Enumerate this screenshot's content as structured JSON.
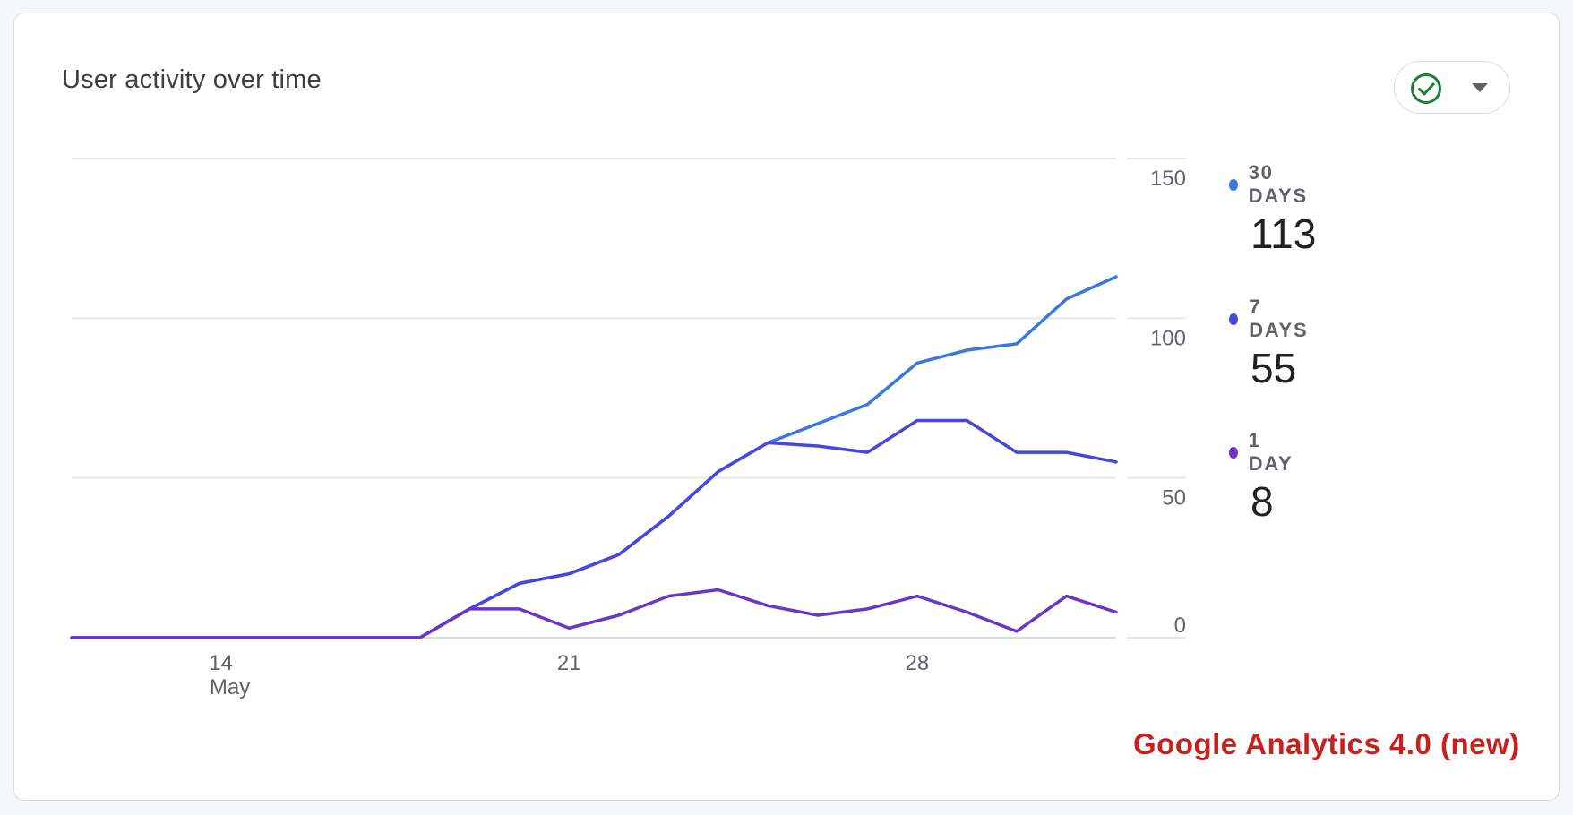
{
  "card": {
    "title": "User activity over time",
    "status_icon": "check-circle-icon",
    "dropdown_icon": "caret-down-icon",
    "status_color": "#188038"
  },
  "chart_data": {
    "type": "line",
    "x": [
      "May 11",
      "May 12",
      "May 13",
      "May 14",
      "May 15",
      "May 16",
      "May 17",
      "May 18",
      "May 19",
      "May 20",
      "May 21",
      "May 22",
      "May 23",
      "May 24",
      "May 25",
      "May 26",
      "May 27",
      "May 28",
      "May 29",
      "May 30",
      "May 31",
      "Jun 1"
    ],
    "x_tick_labels": [
      {
        "label": "14",
        "sublabel": "May",
        "x": "May 14"
      },
      {
        "label": "21",
        "sublabel": "",
        "x": "May 21"
      },
      {
        "label": "28",
        "sublabel": "",
        "x": "May 28"
      }
    ],
    "y_ticks": [
      "0",
      "50",
      "100",
      "150"
    ],
    "ylim": [
      0,
      150
    ],
    "grid": true,
    "legend_position": "right",
    "series": [
      {
        "name": "30 DAYS",
        "total": "113",
        "color": "#3a78e0",
        "values": [
          0,
          0,
          0,
          0,
          0,
          0,
          0,
          0,
          9,
          17,
          20,
          26,
          38,
          52,
          61,
          67,
          73,
          86,
          90,
          92,
          106,
          113
        ]
      },
      {
        "name": "7 DAYS",
        "total": "55",
        "color": "#4646e0",
        "values": [
          0,
          0,
          0,
          0,
          0,
          0,
          0,
          0,
          9,
          17,
          20,
          26,
          38,
          52,
          61,
          60,
          58,
          68,
          68,
          58,
          58,
          55
        ]
      },
      {
        "name": "1 DAY",
        "total": "8",
        "color": "#6c36c4",
        "values": [
          0,
          0,
          0,
          0,
          0,
          0,
          0,
          0,
          9,
          9,
          3,
          7,
          13,
          15,
          10,
          7,
          9,
          13,
          8,
          2,
          13,
          8
        ]
      }
    ]
  },
  "watermark": "Google Analytics 4.0 (new)"
}
